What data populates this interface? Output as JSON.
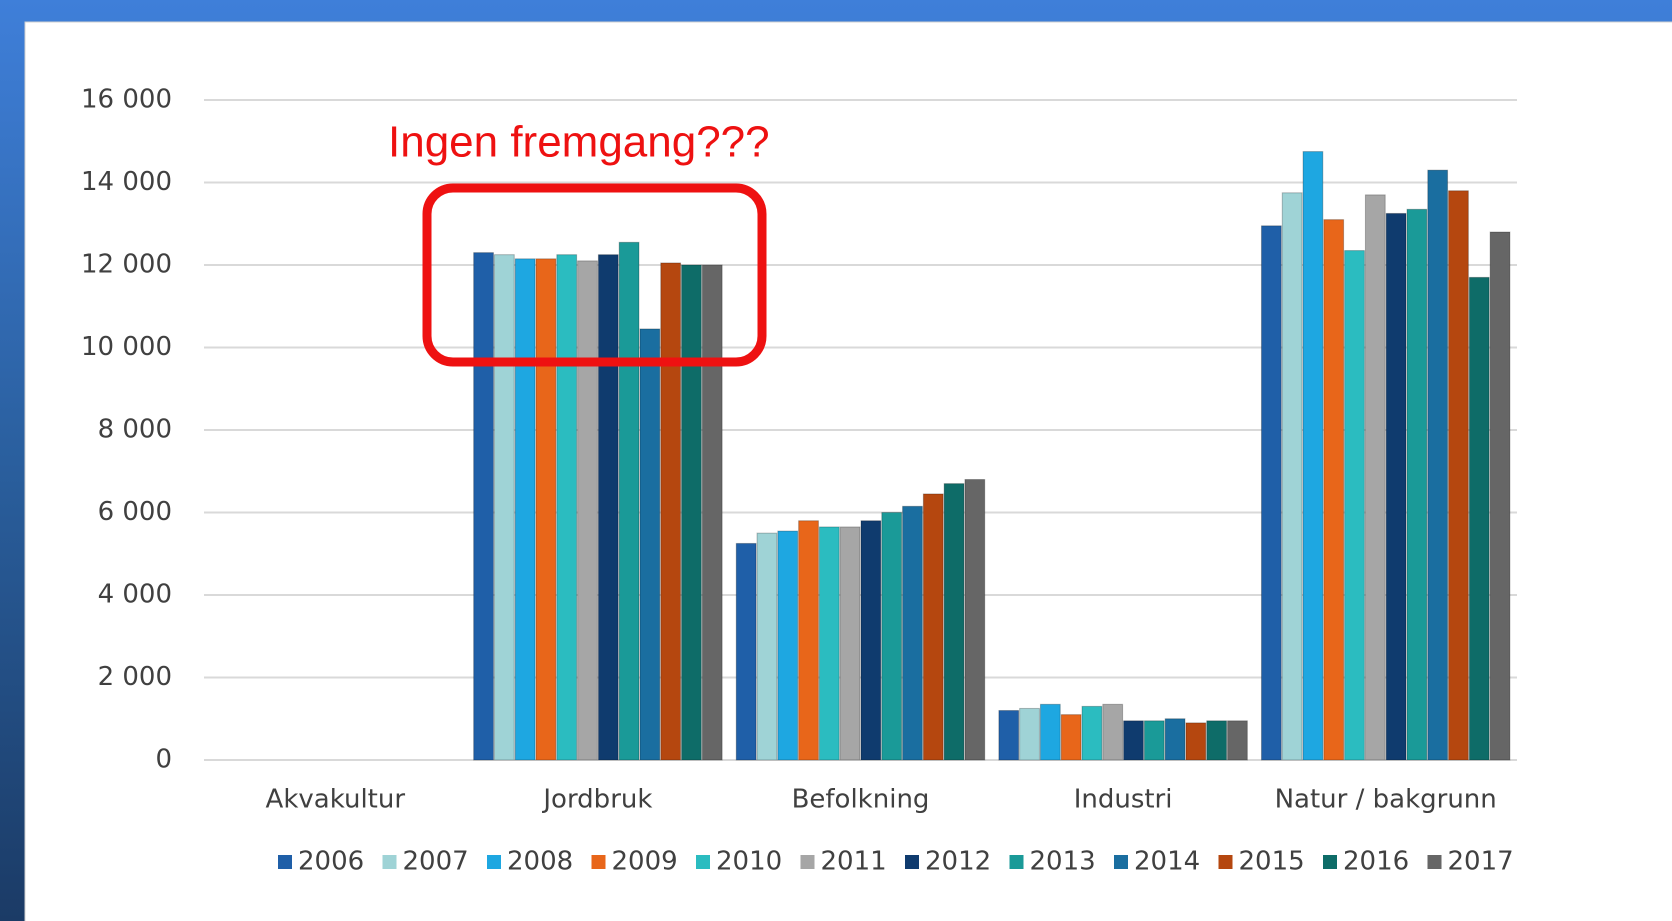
{
  "chart_data": {
    "type": "bar",
    "annotation": "Ingen fremgang???",
    "categories": [
      "Akvakultur",
      "Jordbruk",
      "Befolkning",
      "Industri",
      "Natur / bakgrunn"
    ],
    "series": [
      {
        "name": "2006",
        "color": "#1f5fa8",
        "values": [
          0,
          12300,
          5250,
          1200,
          12950
        ]
      },
      {
        "name": "2007",
        "color": "#9fd3d6",
        "values": [
          0,
          12250,
          5500,
          1250,
          13750
        ]
      },
      {
        "name": "2008",
        "color": "#1ea7e1",
        "values": [
          0,
          12150,
          5550,
          1350,
          14750
        ]
      },
      {
        "name": "2009",
        "color": "#e8661a",
        "values": [
          0,
          12150,
          5800,
          1100,
          13100
        ]
      },
      {
        "name": "2010",
        "color": "#2bbcc0",
        "values": [
          0,
          12250,
          5650,
          1300,
          12350
        ]
      },
      {
        "name": "2011",
        "color": "#a6a6a6",
        "values": [
          0,
          12100,
          5650,
          1350,
          13700
        ]
      },
      {
        "name": "2012",
        "color": "#0f3b6e",
        "values": [
          0,
          12250,
          5800,
          950,
          13250
        ]
      },
      {
        "name": "2013",
        "color": "#1a9a98",
        "values": [
          0,
          12550,
          6000,
          950,
          13350
        ]
      },
      {
        "name": "2014",
        "color": "#1a6ea0",
        "values": [
          0,
          10450,
          6150,
          1000,
          14300
        ]
      },
      {
        "name": "2015",
        "color": "#b5470f",
        "values": [
          0,
          12050,
          6450,
          900,
          13800
        ]
      },
      {
        "name": "2016",
        "color": "#0e6c68",
        "values": [
          0,
          12000,
          6700,
          950,
          11700
        ]
      },
      {
        "name": "2017",
        "color": "#666666",
        "values": [
          0,
          12000,
          6800,
          950,
          12800
        ]
      }
    ],
    "ylim": [
      0,
      16000
    ],
    "yticks": [
      0,
      {
        "value": 2000,
        "label": "2 000"
      },
      {
        "value": 4000,
        "label": "4 000"
      },
      {
        "value": 6000,
        "label": "6 000"
      },
      {
        "value": 8000,
        "label": "8 000"
      },
      {
        "value": 10000,
        "label": "10 000"
      },
      {
        "value": 12000,
        "label": "12 000"
      },
      {
        "value": 14000,
        "label": "14 000"
      },
      {
        "value": 16000,
        "label": "16 000"
      }
    ],
    "grid": true,
    "legend": "bottom"
  }
}
